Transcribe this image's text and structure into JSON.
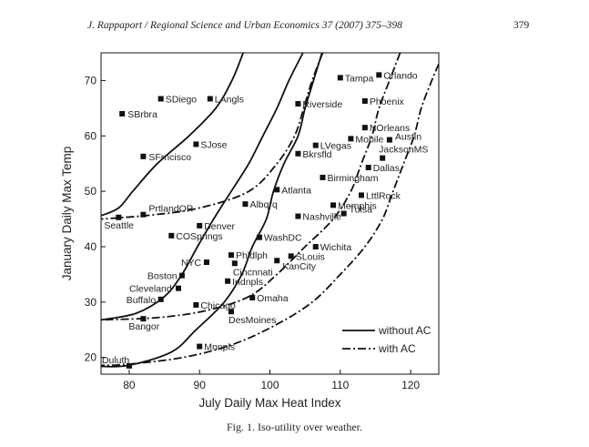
{
  "header": {
    "citation": "J. Rappaport / Regional Science and Urban Economics 37 (2007) 375–398",
    "page_number": "379"
  },
  "caption": "Fig. 1. Iso-utility over weather.",
  "chart_data": {
    "type": "scatter",
    "xlabel": "July Daily Max Heat Index",
    "ylabel": "January Daily Max Temp",
    "xlim": [
      76,
      124
    ],
    "ylim": [
      17,
      75
    ],
    "xticks": [
      80,
      90,
      100,
      110,
      120
    ],
    "yticks": [
      20,
      30,
      40,
      50,
      60,
      70
    ],
    "grid": false,
    "legend_position": "bottom-right",
    "points": [
      {
        "label": "SBrbra",
        "x": 79,
        "y": 64
      },
      {
        "label": "SDiego",
        "x": 84.5,
        "y": 66.7
      },
      {
        "label": "LAngls",
        "x": 91.5,
        "y": 66.7
      },
      {
        "label": "SJose",
        "x": 89.5,
        "y": 58.5
      },
      {
        "label": "SFrncisco",
        "x": 82,
        "y": 56.3
      },
      {
        "label": "Tampa",
        "x": 110,
        "y": 70.5
      },
      {
        "label": "Orlando",
        "x": 115.5,
        "y": 71
      },
      {
        "label": "Phoenix",
        "x": 113.5,
        "y": 66.3
      },
      {
        "label": "Riverside",
        "x": 104,
        "y": 65.8
      },
      {
        "label": "NOrleans",
        "x": 113.5,
        "y": 61.5
      },
      {
        "label": "Mobile",
        "x": 111.5,
        "y": 59.5
      },
      {
        "label": "Austin",
        "x": 117,
        "y": 59.3
      },
      {
        "label": "LVegas",
        "x": 106.5,
        "y": 58.3
      },
      {
        "label": "JacksonMS",
        "x": 116,
        "y": 56
      },
      {
        "label": "Bkrsfld",
        "x": 104,
        "y": 56.8
      },
      {
        "label": "Dallas",
        "x": 114,
        "y": 54.3
      },
      {
        "label": "Birmingham",
        "x": 107.5,
        "y": 52.5
      },
      {
        "label": "Atlanta",
        "x": 101,
        "y": 50.3
      },
      {
        "label": "LttlRock",
        "x": 113,
        "y": 49.3
      },
      {
        "label": "Memphis",
        "x": 109,
        "y": 47.5
      },
      {
        "label": "Nashville",
        "x": 104,
        "y": 45.5
      },
      {
        "label": "Tulsa",
        "x": 110.5,
        "y": 46
      },
      {
        "label": "Albqrq",
        "x": 96.5,
        "y": 47.7
      },
      {
        "label": "PrtlandOR",
        "x": 82,
        "y": 45.8
      },
      {
        "label": "Seattle",
        "x": 78.5,
        "y": 45.3
      },
      {
        "label": "Denver",
        "x": 90,
        "y": 43.8
      },
      {
        "label": "COSprings",
        "x": 86,
        "y": 42
      },
      {
        "label": "WashDC",
        "x": 98.5,
        "y": 41.7
      },
      {
        "label": "Wichita",
        "x": 106.5,
        "y": 40
      },
      {
        "label": "Phldlph",
        "x": 94.5,
        "y": 38.5
      },
      {
        "label": "SLouis",
        "x": 103,
        "y": 38.3
      },
      {
        "label": "NYC",
        "x": 91,
        "y": 37.2
      },
      {
        "label": "Cincnnati",
        "x": 95,
        "y": 37
      },
      {
        "label": "KanCity",
        "x": 101,
        "y": 37.5
      },
      {
        "label": "Boston",
        "x": 87.5,
        "y": 34.8
      },
      {
        "label": "Indnpls",
        "x": 94,
        "y": 33.8
      },
      {
        "label": "Cleveland",
        "x": 87,
        "y": 32.5
      },
      {
        "label": "Omaha",
        "x": 97.5,
        "y": 30.8
      },
      {
        "label": "Buffalo",
        "x": 84.5,
        "y": 30.5
      },
      {
        "label": "Chicago",
        "x": 89.5,
        "y": 29.5
      },
      {
        "label": "DesMoines",
        "x": 94.5,
        "y": 28.3
      },
      {
        "label": "Bangor",
        "x": 82,
        "y": 27
      },
      {
        "label": "Mnnpls",
        "x": 90,
        "y": 22
      },
      {
        "label": "Duluth",
        "x": 80,
        "y": 18.5
      }
    ],
    "series": [
      {
        "name": "without AC",
        "style": "solid",
        "curves": [
          [
            [
              96.2,
              75
            ],
            [
              94.6,
              70
            ],
            [
              92.3,
              65
            ],
            [
              88.5,
              60
            ],
            [
              84,
              55
            ],
            [
              80.5,
              50
            ],
            [
              78.5,
              47
            ],
            [
              76,
              45.6
            ]
          ],
          [
            [
              104.7,
              75
            ],
            [
              102.7,
              70
            ],
            [
              101,
              65
            ],
            [
              99,
              60
            ],
            [
              97,
              55
            ],
            [
              94.5,
              50
            ],
            [
              92,
              45
            ],
            [
              89.7,
              40
            ],
            [
              87.5,
              35
            ],
            [
              85,
              31
            ],
            [
              81,
              28
            ],
            [
              76,
              26.8
            ]
          ],
          [
            [
              107.4,
              75
            ],
            [
              106.2,
              70
            ],
            [
              105,
              65
            ],
            [
              104,
              60
            ],
            [
              102,
              55
            ],
            [
              100.5,
              50
            ],
            [
              99.5,
              45
            ],
            [
              97.5,
              40
            ],
            [
              96,
              35
            ],
            [
              93.5,
              30
            ],
            [
              89.5,
              25
            ],
            [
              86,
              21
            ],
            [
              80,
              18.6
            ],
            [
              76,
              18.4
            ]
          ]
        ]
      },
      {
        "name": "with AC",
        "style": "dash-dot",
        "curves": [
          [
            [
              107.5,
              75
            ],
            [
              106,
              70
            ],
            [
              104.8,
              65
            ],
            [
              103.5,
              60
            ],
            [
              101,
              55
            ],
            [
              97,
              50
            ],
            [
              90,
              47
            ],
            [
              83,
              45.7
            ],
            [
              76,
              45
            ]
          ],
          [
            [
              118.5,
              75
            ],
            [
              117,
              70
            ],
            [
              115.5,
              65
            ],
            [
              114.5,
              60
            ],
            [
              113,
              55
            ],
            [
              111.5,
              50
            ],
            [
              109,
              45
            ],
            [
              105,
              40
            ],
            [
              101,
              35
            ],
            [
              97,
              31
            ],
            [
              91,
              28.5
            ],
            [
              84,
              27.2
            ],
            [
              76,
              26.8
            ]
          ],
          [
            [
              124,
              73
            ],
            [
              123,
              70
            ],
            [
              121.5,
              65
            ],
            [
              120.5,
              60
            ],
            [
              119,
              55
            ],
            [
              117.5,
              50
            ],
            [
              116,
              45
            ],
            [
              113.5,
              40
            ],
            [
              110,
              35
            ],
            [
              106,
              30
            ],
            [
              101,
              26
            ],
            [
              95,
              22.5
            ],
            [
              88,
              20.1
            ],
            [
              80,
              18.8
            ],
            [
              76,
              18.6
            ]
          ]
        ]
      }
    ]
  }
}
